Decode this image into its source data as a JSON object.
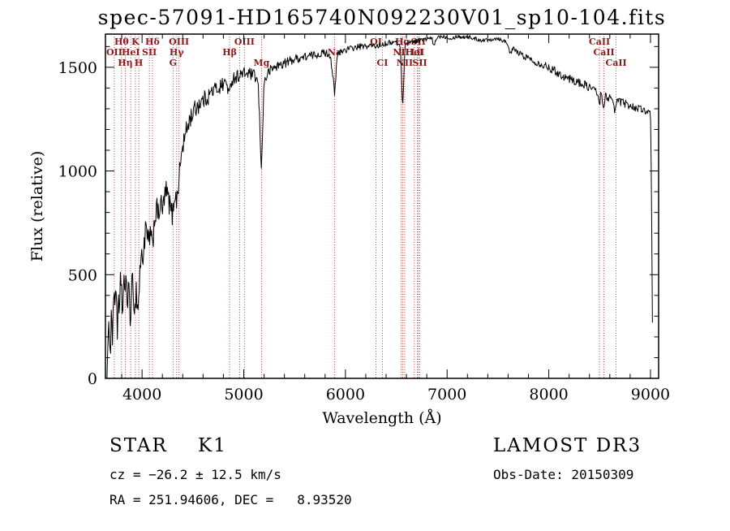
{
  "title": "spec-57091-HD165740N092230V01_sp10-104.fits",
  "colors": {
    "background": "#ffffff",
    "spectrum": "#000000",
    "marker": "#aa2222",
    "marker_label": "#8b1a1a",
    "axis": "#000000"
  },
  "chart_data": {
    "type": "line",
    "title": "spec-57091-HD165740N092230V01_sp10-104.fits",
    "xlabel": "Wavelength (Å)",
    "ylabel": "Flux (relative)",
    "xlim": [
      3640,
      9080
    ],
    "ylim": [
      0,
      1660
    ],
    "x_major_ticks": [
      4000,
      5000,
      6000,
      7000,
      8000,
      9000
    ],
    "x_minor_step": 200,
    "y_major_ticks": [
      0,
      500,
      1000,
      1500
    ],
    "y_minor_step": 100,
    "grid": false,
    "legend": "none",
    "series": [
      {
        "name": "flux",
        "anchors": [
          [
            3655,
            20
          ],
          [
            3665,
            120
          ],
          [
            3680,
            260
          ],
          [
            3690,
            160
          ],
          [
            3700,
            330
          ],
          [
            3710,
            210
          ],
          [
            3720,
            430
          ],
          [
            3730,
            290
          ],
          [
            3740,
            480
          ],
          [
            3750,
            380
          ],
          [
            3760,
            200
          ],
          [
            3770,
            360
          ],
          [
            3780,
            270
          ],
          [
            3790,
            520
          ],
          [
            3800,
            420
          ],
          [
            3810,
            300
          ],
          [
            3820,
            480
          ],
          [
            3830,
            340
          ],
          [
            3840,
            560
          ],
          [
            3850,
            420
          ],
          [
            3860,
            300
          ],
          [
            3870,
            480
          ],
          [
            3880,
            360
          ],
          [
            3890,
            250
          ],
          [
            3900,
            420
          ],
          [
            3910,
            500
          ],
          [
            3920,
            380
          ],
          [
            3930,
            300
          ],
          [
            3940,
            450
          ],
          [
            3950,
            380
          ],
          [
            3960,
            320
          ],
          [
            3970,
            420
          ],
          [
            3980,
            520
          ],
          [
            3990,
            600
          ],
          [
            4000,
            560
          ],
          [
            4020,
            650
          ],
          [
            4040,
            720
          ],
          [
            4060,
            640
          ],
          [
            4080,
            700
          ],
          [
            4100,
            620
          ],
          [
            4120,
            760
          ],
          [
            4140,
            820
          ],
          [
            4160,
            780
          ],
          [
            4180,
            850
          ],
          [
            4200,
            800
          ],
          [
            4220,
            870
          ],
          [
            4240,
            900
          ],
          [
            4260,
            860
          ],
          [
            4280,
            820
          ],
          [
            4300,
            780
          ],
          [
            4320,
            900
          ],
          [
            4340,
            850
          ],
          [
            4360,
            950
          ],
          [
            4380,
            1050
          ],
          [
            4400,
            1120
          ],
          [
            4430,
            1180
          ],
          [
            4460,
            1240
          ],
          [
            4500,
            1280
          ],
          [
            4550,
            1320
          ],
          [
            4600,
            1340
          ],
          [
            4650,
            1360
          ],
          [
            4700,
            1390
          ],
          [
            4750,
            1400
          ],
          [
            4800,
            1420
          ],
          [
            4830,
            1430
          ],
          [
            4861,
            1360
          ],
          [
            4880,
            1440
          ],
          [
            4900,
            1450
          ],
          [
            4950,
            1460
          ],
          [
            5000,
            1470
          ],
          [
            5050,
            1470
          ],
          [
            5100,
            1460
          ],
          [
            5140,
            1430
          ],
          [
            5160,
            1200
          ],
          [
            5172,
            980
          ],
          [
            5185,
            1200
          ],
          [
            5200,
            1430
          ],
          [
            5250,
            1480
          ],
          [
            5300,
            1500
          ],
          [
            5350,
            1510
          ],
          [
            5400,
            1520
          ],
          [
            5450,
            1530
          ],
          [
            5500,
            1540
          ],
          [
            5550,
            1545
          ],
          [
            5600,
            1550
          ],
          [
            5650,
            1555
          ],
          [
            5700,
            1560
          ],
          [
            5750,
            1565
          ],
          [
            5800,
            1570
          ],
          [
            5850,
            1560
          ],
          [
            5880,
            1450
          ],
          [
            5893,
            1360
          ],
          [
            5905,
            1450
          ],
          [
            5920,
            1560
          ],
          [
            5950,
            1575
          ],
          [
            6000,
            1585
          ],
          [
            6050,
            1590
          ],
          [
            6100,
            1595
          ],
          [
            6150,
            1600
          ],
          [
            6200,
            1600
          ],
          [
            6250,
            1605
          ],
          [
            6300,
            1600
          ],
          [
            6350,
            1610
          ],
          [
            6400,
            1615
          ],
          [
            6450,
            1620
          ],
          [
            6500,
            1620
          ],
          [
            6540,
            1600
          ],
          [
            6563,
            1300
          ],
          [
            6585,
            1600
          ],
          [
            6620,
            1620
          ],
          [
            6680,
            1625
          ],
          [
            6730,
            1630
          ],
          [
            6800,
            1635
          ],
          [
            6850,
            1640
          ],
          [
            6870,
            1600
          ],
          [
            6900,
            1645
          ],
          [
            6950,
            1650
          ],
          [
            7000,
            1645
          ],
          [
            7050,
            1640
          ],
          [
            7100,
            1650
          ],
          [
            7150,
            1645
          ],
          [
            7200,
            1648
          ],
          [
            7250,
            1640
          ],
          [
            7300,
            1635
          ],
          [
            7350,
            1630
          ],
          [
            7400,
            1632
          ],
          [
            7450,
            1638
          ],
          [
            7500,
            1640
          ],
          [
            7550,
            1630
          ],
          [
            7600,
            1615
          ],
          [
            7620,
            1560
          ],
          [
            7650,
            1590
          ],
          [
            7700,
            1570
          ],
          [
            7750,
            1555
          ],
          [
            7800,
            1545
          ],
          [
            7850,
            1530
          ],
          [
            7900,
            1520
          ],
          [
            7950,
            1510
          ],
          [
            8000,
            1500
          ],
          [
            8050,
            1485
          ],
          [
            8100,
            1470
          ],
          [
            8150,
            1455
          ],
          [
            8200,
            1445
          ],
          [
            8250,
            1435
          ],
          [
            8300,
            1425
          ],
          [
            8350,
            1415
          ],
          [
            8400,
            1405
          ],
          [
            8450,
            1390
          ],
          [
            8490,
            1360
          ],
          [
            8498,
            1320
          ],
          [
            8510,
            1370
          ],
          [
            8540,
            1310
          ],
          [
            8555,
            1360
          ],
          [
            8600,
            1355
          ],
          [
            8655,
            1290
          ],
          [
            8670,
            1340
          ],
          [
            8700,
            1335
          ],
          [
            8750,
            1325
          ],
          [
            8800,
            1315
          ],
          [
            8850,
            1305
          ],
          [
            8900,
            1300
          ],
          [
            8950,
            1290
          ],
          [
            8990,
            1280
          ],
          [
            9000,
            1270
          ],
          [
            9010,
            900
          ],
          [
            9018,
            300
          ],
          [
            9024,
            40
          ]
        ]
      }
    ],
    "noise_profile": [
      [
        3650,
        85
      ],
      [
        4000,
        72
      ],
      [
        4300,
        55
      ],
      [
        4700,
        40
      ],
      [
        5000,
        30
      ],
      [
        5500,
        22
      ],
      [
        6000,
        16
      ],
      [
        6500,
        12
      ],
      [
        7000,
        9
      ],
      [
        7500,
        11
      ],
      [
        8000,
        19
      ],
      [
        8500,
        22
      ],
      [
        9000,
        16
      ]
    ],
    "spectral_lines": [
      {
        "wavelength": 3727,
        "label": "OII",
        "row": 2
      },
      {
        "wavelength": 3798,
        "label": "Hθ",
        "row": 1
      },
      {
        "wavelength": 3835,
        "label": "Hη",
        "row": 3
      },
      {
        "wavelength": 3889,
        "label": "HeI",
        "row": 2
      },
      {
        "wavelength": 3934,
        "label": "K",
        "row": 1
      },
      {
        "wavelength": 3968,
        "label": "H",
        "row": 3
      },
      {
        "wavelength": 4072,
        "label": "SII",
        "row": 2
      },
      {
        "wavelength": 4102,
        "label": "Hδ",
        "row": 1
      },
      {
        "wavelength": 4305,
        "label": "G",
        "row": 3
      },
      {
        "wavelength": 4340,
        "label": "Hγ",
        "row": 2
      },
      {
        "wavelength": 4363,
        "label": "OIII",
        "row": 1
      },
      {
        "wavelength": 4861,
        "label": "Hβ",
        "row": 2
      },
      {
        "wavelength": 4959,
        "label": "",
        "row": 1
      },
      {
        "wavelength": 5007,
        "label": "OIII",
        "row": 1
      },
      {
        "wavelength": 5175,
        "label": "Mg",
        "row": 3
      },
      {
        "wavelength": 5893,
        "label": "Na",
        "row": 2
      },
      {
        "wavelength": 6300,
        "label": "OI",
        "row": 1
      },
      {
        "wavelength": 6364,
        "label": "CI",
        "row": 3
      },
      {
        "wavelength": 6548,
        "label": "NII",
        "row": 2
      },
      {
        "wavelength": 6563,
        "label": "Hα",
        "row": 1
      },
      {
        "wavelength": 6583,
        "label": "NII",
        "row": 3
      },
      {
        "wavelength": 6678,
        "label": "HeI",
        "row": 2
      },
      {
        "wavelength": 6708,
        "label": "LiI",
        "row": 2
      },
      {
        "wavelength": 6717,
        "label": "SII",
        "row": 1
      },
      {
        "wavelength": 6731,
        "label": "SII",
        "row": 3
      },
      {
        "wavelength": 8498,
        "label": "CaII",
        "row": 1
      },
      {
        "wavelength": 8542,
        "label": "CaII",
        "row": 2
      },
      {
        "wavelength": 8662,
        "label": "CaII",
        "row": 3
      }
    ]
  },
  "footer": {
    "class_label": "STAR    K1",
    "survey": "LAMOST DR3",
    "cz": "cz = −26.2 ± 12.5 km/s",
    "obs_date": "Obs-Date: 20150309",
    "ra_dec": "RA = 251.94606, DEC =   8.93520"
  }
}
